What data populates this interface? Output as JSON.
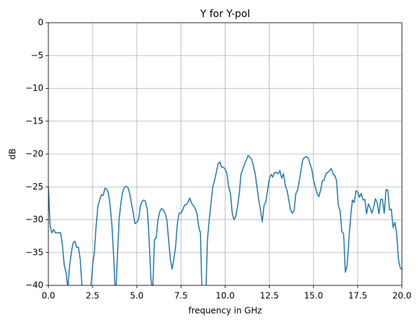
{
  "chart_data": {
    "type": "line",
    "title": "Y for Y-pol",
    "x_label": "frequency in GHz",
    "y_label": "dB",
    "xlim": [
      0,
      20
    ],
    "ylim": [
      -40,
      0
    ],
    "grid": true,
    "xticks": [
      {
        "value": 0,
        "label": "0.0"
      },
      {
        "value": 2.5,
        "label": "2.5"
      },
      {
        "value": 5,
        "label": "5.0"
      },
      {
        "value": 7.5,
        "label": "7.5"
      },
      {
        "value": 10,
        "label": "10.0"
      },
      {
        "value": 12.5,
        "label": "12.5"
      },
      {
        "value": 15,
        "label": "15.0"
      },
      {
        "value": 17.5,
        "label": "17.5"
      },
      {
        "value": 20,
        "label": "20.0"
      }
    ],
    "yticks": [
      {
        "value": 0,
        "label": "0"
      },
      {
        "value": -5,
        "label": "−5"
      },
      {
        "value": -10,
        "label": "−10"
      },
      {
        "value": -15,
        "label": "−15"
      },
      {
        "value": -20,
        "label": "−20"
      },
      {
        "value": -25,
        "label": "−25"
      },
      {
        "value": -30,
        "label": "−30"
      },
      {
        "value": -35,
        "label": "−35"
      },
      {
        "value": -40,
        "label": "−40"
      }
    ],
    "x": [
      0,
      0.1,
      0.2,
      0.3,
      0.4,
      0.6,
      0.7,
      0.8,
      0.9,
      1.0,
      1.1,
      1.2,
      1.3,
      1.4,
      1.5,
      1.6,
      1.7,
      1.8,
      1.9,
      2.0,
      2.2,
      2.4,
      2.5,
      2.6,
      2.7,
      2.8,
      2.9,
      3.0,
      3.1,
      3.2,
      3.3,
      3.4,
      3.5,
      3.6,
      3.7,
      3.8,
      3.9,
      4.0,
      4.1,
      4.2,
      4.3,
      4.4,
      4.5,
      4.6,
      4.7,
      4.8,
      4.9,
      5.0,
      5.1,
      5.2,
      5.3,
      5.4,
      5.5,
      5.6,
      5.7,
      5.8,
      5.9,
      6.0,
      6.1,
      6.2,
      6.3,
      6.4,
      6.5,
      6.6,
      6.7,
      6.8,
      6.9,
      7.0,
      7.1,
      7.2,
      7.3,
      7.4,
      7.5,
      7.6,
      7.7,
      7.8,
      7.9,
      8.0,
      8.1,
      8.2,
      8.3,
      8.4,
      8.5,
      8.6,
      8.7,
      8.8,
      8.9,
      9.0,
      9.1,
      9.2,
      9.3,
      9.4,
      9.5,
      9.6,
      9.7,
      9.8,
      9.9,
      10.0,
      10.1,
      10.2,
      10.3,
      10.4,
      10.5,
      10.6,
      10.7,
      10.8,
      10.9,
      11.0,
      11.1,
      11.2,
      11.3,
      11.4,
      11.5,
      11.6,
      11.7,
      11.8,
      11.9,
      12.0,
      12.1,
      12.2,
      12.3,
      12.4,
      12.5,
      12.6,
      12.7,
      12.8,
      12.9,
      13.0,
      13.1,
      13.2,
      13.3,
      13.4,
      13.5,
      13.6,
      13.7,
      13.8,
      13.9,
      14.0,
      14.1,
      14.2,
      14.3,
      14.4,
      14.5,
      14.6,
      14.7,
      14.8,
      14.9,
      15.0,
      15.1,
      15.2,
      15.3,
      15.4,
      15.5,
      15.6,
      15.7,
      15.8,
      15.9,
      16.0,
      16.1,
      16.2,
      16.3,
      16.4,
      16.5,
      16.6,
      16.7,
      16.8,
      16.9,
      17.0,
      17.1,
      17.2,
      17.3,
      17.4,
      17.5,
      17.6,
      17.7,
      17.8,
      17.9,
      18.0,
      18.1,
      18.2,
      18.3,
      18.4,
      18.5,
      18.6,
      18.7,
      18.8,
      18.9,
      19.0,
      19.1,
      19.2,
      19.3,
      19.4,
      19.5,
      19.6,
      19.7,
      19.8,
      19.9,
      20.0
    ],
    "series": [
      {
        "color": "#1f77b4",
        "values": [
          -25,
          -31,
          -32,
          -31.5,
          -32,
          -32,
          -32,
          -34,
          -37,
          -38,
          -40.5,
          -37,
          -35,
          -33.5,
          -33.3,
          -34.2,
          -34.2,
          -36,
          -40,
          -42,
          -41,
          -40.5,
          -37,
          -35,
          -31,
          -28,
          -27,
          -26.2,
          -26.3,
          -25.2,
          -25.3,
          -26,
          -28,
          -31,
          -36,
          -42,
          -36,
          -30,
          -27.5,
          -25.8,
          -25.1,
          -24.9,
          -25.1,
          -26,
          -27.5,
          -29,
          -30.6,
          -30.4,
          -30,
          -28,
          -27.2,
          -27,
          -27.3,
          -28.5,
          -33,
          -39,
          -41,
          -33,
          -32.8,
          -30,
          -28.8,
          -28.3,
          -28.5,
          -29,
          -30,
          -33,
          -36,
          -37.5,
          -36,
          -34,
          -30.5,
          -29,
          -29,
          -28.5,
          -27.8,
          -27.7,
          -27.3,
          -26.7,
          -27.5,
          -27.8,
          -28.3,
          -29,
          -31,
          -32,
          -42,
          -43,
          -42,
          -33,
          -30,
          -27.5,
          -25,
          -24,
          -22.8,
          -21.5,
          -21.2,
          -22,
          -22,
          -22.3,
          -23,
          -25,
          -26,
          -29,
          -30,
          -29.5,
          -28,
          -26,
          -23,
          -22.3,
          -21.5,
          -20.9,
          -20.2,
          -20.5,
          -20.8,
          -21.8,
          -23,
          -25,
          -27,
          -28.5,
          -30.3,
          -27.8,
          -27.3,
          -25.5,
          -23.8,
          -23.1,
          -23.5,
          -22.8,
          -22.8,
          -23,
          -22.5,
          -23.7,
          -23,
          -24.8,
          -25.5,
          -27,
          -28.5,
          -29,
          -28.6,
          -26,
          -25.5,
          -24,
          -22.3,
          -20.8,
          -20.5,
          -20.4,
          -20.6,
          -21.5,
          -22.3,
          -24,
          -25,
          -26,
          -26.5,
          -25.5,
          -24.1,
          -24,
          -23,
          -22.8,
          -22.6,
          -22.2,
          -23,
          -23.3,
          -24,
          -27.8,
          -28.6,
          -31.8,
          -32.1,
          -38,
          -37,
          -33,
          -29.5,
          -27,
          -27.4,
          -25.6,
          -25.8,
          -26.6,
          -26,
          -27,
          -26.9,
          -29.1,
          -27.6,
          -28.2,
          -29,
          -28.1,
          -26.8,
          -27.4,
          -29.1,
          -26.9,
          -26.9,
          -29,
          -25.4,
          -25.5,
          -28.5,
          -28.4,
          -31.2,
          -30.4,
          -32,
          -36,
          -37.3,
          -37.6
        ]
      }
    ]
  }
}
